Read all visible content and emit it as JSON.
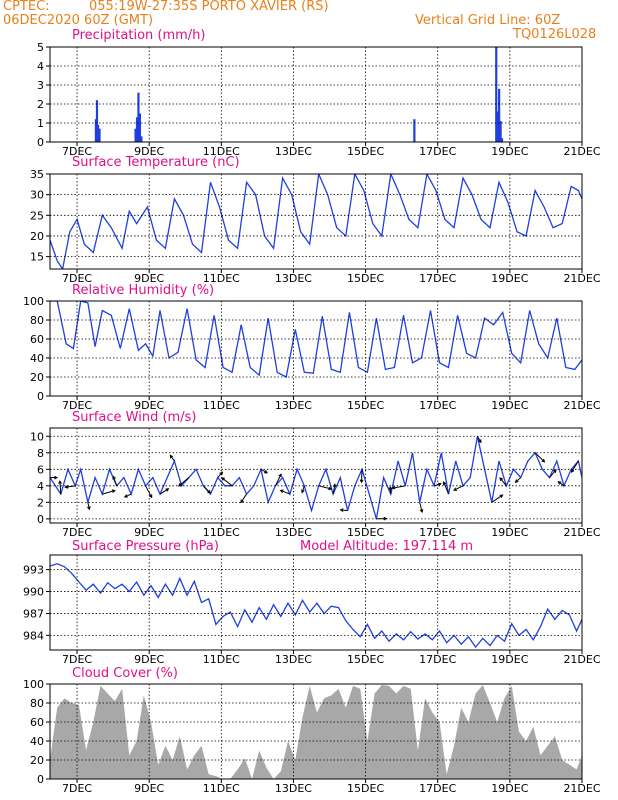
{
  "header": {
    "source": "CPTEC:",
    "location": "055:19W-27:35S   PORTO XAVIER (RS)",
    "date": "06DEC2020 60Z (GMT)",
    "grid_note": "Vertical Grid Line: 60Z",
    "model": "TQ0126L028"
  },
  "panels": {
    "precip": {
      "title": "Precipitation  (mm/h)"
    },
    "temp": {
      "title": "Surface Temperature (nC)"
    },
    "rh": {
      "title": "Relative Humidity (%)"
    },
    "wind": {
      "title": "Surface Wind (m/s)"
    },
    "pres": {
      "title": "Surface Pressure (hPa)",
      "altitude": "Model Altitude: 197.114 m"
    },
    "cloud": {
      "title": "Cloud Cover (%)"
    }
  },
  "colors": {
    "line": "#1f3fe0",
    "cloud": "#a8a8a8",
    "title": "#e0108a",
    "header": "#e8801a"
  },
  "chart_data": [
    {
      "type": "bar",
      "name": "precipitation",
      "xlabel": "",
      "ylabel": "",
      "x_tick_labels": [
        "7DEC",
        "9DEC",
        "11DEC",
        "13DEC",
        "15DEC",
        "17DEC",
        "19DEC",
        "21DEC"
      ],
      "ylim": [
        0,
        5
      ],
      "y_ticks": [
        0,
        1,
        2,
        3,
        4,
        5
      ],
      "x_range_days": [
        6.25,
        21.0
      ],
      "points": [
        {
          "day": 7.52,
          "value": 1.2
        },
        {
          "day": 7.55,
          "value": 2.2
        },
        {
          "day": 7.58,
          "value": 0.9
        },
        {
          "day": 7.62,
          "value": 0.7
        },
        {
          "day": 8.62,
          "value": 0.7
        },
        {
          "day": 8.66,
          "value": 1.3
        },
        {
          "day": 8.7,
          "value": 2.6
        },
        {
          "day": 8.74,
          "value": 1.5
        },
        {
          "day": 8.78,
          "value": 0.3
        },
        {
          "day": 16.35,
          "value": 1.2
        },
        {
          "day": 18.62,
          "value": 5.0
        },
        {
          "day": 18.66,
          "value": 1.6
        },
        {
          "day": 18.7,
          "value": 2.8
        },
        {
          "day": 18.74,
          "value": 1.1
        },
        {
          "day": 18.78,
          "value": 0.2
        }
      ]
    },
    {
      "type": "line",
      "name": "surface_temperature",
      "xlabel": "",
      "ylabel": "",
      "x_tick_labels": [
        "7DEC",
        "9DEC",
        "11DEC",
        "13DEC",
        "15DEC",
        "17DEC",
        "19DEC",
        "21DEC"
      ],
      "ylim": [
        12,
        35
      ],
      "y_ticks": [
        15,
        20,
        25,
        30,
        35
      ],
      "x_range_days": [
        6.25,
        21.0
      ],
      "x": [
        6.25,
        6.45,
        6.6,
        6.8,
        7.0,
        7.2,
        7.45,
        7.7,
        7.95,
        8.25,
        8.45,
        8.65,
        8.95,
        9.2,
        9.45,
        9.7,
        9.95,
        10.2,
        10.45,
        10.7,
        10.95,
        11.2,
        11.45,
        11.7,
        11.95,
        12.2,
        12.45,
        12.7,
        12.95,
        13.2,
        13.45,
        13.7,
        13.95,
        14.2,
        14.45,
        14.7,
        14.95,
        15.2,
        15.45,
        15.7,
        15.95,
        16.2,
        16.45,
        16.7,
        16.95,
        17.2,
        17.45,
        17.7,
        17.95,
        18.2,
        18.45,
        18.7,
        18.95,
        19.2,
        19.45,
        19.7,
        19.95,
        20.2,
        20.45,
        20.7,
        20.9,
        21.0
      ],
      "y": [
        19,
        14,
        12,
        21,
        24,
        18,
        16,
        25,
        22,
        17,
        26,
        23,
        27,
        19,
        17,
        29,
        25,
        18,
        16,
        33,
        27,
        19,
        17,
        33,
        30,
        20,
        17,
        34,
        30,
        21,
        18,
        35,
        30,
        22,
        20,
        35,
        31,
        23,
        20,
        35,
        30,
        24,
        22,
        35,
        31,
        24,
        22,
        34,
        30,
        24,
        22,
        33,
        28,
        21,
        20,
        31,
        27,
        22,
        23,
        32,
        31,
        29
      ]
    },
    {
      "type": "line",
      "name": "relative_humidity",
      "xlabel": "",
      "ylabel": "",
      "x_tick_labels": [
        "7DEC",
        "9DEC",
        "11DEC",
        "13DEC",
        "15DEC",
        "17DEC",
        "19DEC",
        "21DEC"
      ],
      "ylim": [
        0,
        100
      ],
      "y_ticks": [
        0,
        20,
        40,
        60,
        80,
        100
      ],
      "x_range_days": [
        6.25,
        21.0
      ],
      "x": [
        6.25,
        6.45,
        6.7,
        6.9,
        7.1,
        7.3,
        7.5,
        7.7,
        7.95,
        8.2,
        8.45,
        8.7,
        8.9,
        9.1,
        9.3,
        9.55,
        9.8,
        10.05,
        10.3,
        10.55,
        10.8,
        11.05,
        11.3,
        11.55,
        11.8,
        12.05,
        12.3,
        12.55,
        12.8,
        13.05,
        13.3,
        13.55,
        13.8,
        14.05,
        14.3,
        14.55,
        14.8,
        15.05,
        15.3,
        15.55,
        15.8,
        16.05,
        16.3,
        16.55,
        16.8,
        17.05,
        17.3,
        17.55,
        17.8,
        18.05,
        18.3,
        18.55,
        18.8,
        19.05,
        19.3,
        19.55,
        19.8,
        20.05,
        20.3,
        20.55,
        20.8,
        21.0
      ],
      "y": [
        100,
        100,
        55,
        50,
        100,
        98,
        52,
        90,
        85,
        50,
        92,
        48,
        55,
        42,
        90,
        40,
        46,
        92,
        38,
        30,
        85,
        30,
        25,
        75,
        30,
        22,
        82,
        25,
        20,
        70,
        25,
        24,
        84,
        28,
        25,
        88,
        30,
        25,
        82,
        28,
        30,
        85,
        35,
        40,
        90,
        35,
        30,
        85,
        45,
        40,
        82,
        75,
        88,
        45,
        35,
        90,
        55,
        40,
        82,
        30,
        28,
        38
      ]
    },
    {
      "type": "line",
      "name": "surface_wind",
      "xlabel": "",
      "ylabel": "",
      "x_tick_labels": [
        "7DEC",
        "9DEC",
        "11DEC",
        "13DEC",
        "15DEC",
        "17DEC",
        "19DEC",
        "21DEC"
      ],
      "ylim": [
        -0.5,
        11
      ],
      "y_ticks": [
        0,
        2,
        4,
        6,
        8,
        10
      ],
      "x_range_days": [
        6.25,
        21.0
      ],
      "x": [
        6.25,
        6.4,
        6.55,
        6.75,
        6.95,
        7.1,
        7.3,
        7.5,
        7.7,
        7.9,
        8.1,
        8.3,
        8.5,
        8.7,
        8.9,
        9.1,
        9.3,
        9.5,
        9.7,
        9.9,
        10.1,
        10.3,
        10.5,
        10.7,
        10.9,
        11.1,
        11.3,
        11.5,
        11.7,
        11.9,
        12.1,
        12.3,
        12.5,
        12.7,
        12.9,
        13.1,
        13.3,
        13.5,
        13.7,
        13.9,
        14.1,
        14.3,
        14.5,
        14.7,
        14.9,
        15.1,
        15.3,
        15.5,
        15.7,
        15.9,
        16.1,
        16.3,
        16.5,
        16.7,
        16.9,
        17.1,
        17.3,
        17.5,
        17.7,
        17.9,
        18.1,
        18.3,
        18.5,
        18.7,
        18.9,
        19.1,
        19.3,
        19.5,
        19.7,
        19.9,
        20.1,
        20.3,
        20.5,
        20.7,
        20.9,
        21.0
      ],
      "y": [
        5,
        4,
        3,
        6,
        4,
        6,
        2,
        5,
        3,
        6,
        4,
        5,
        3,
        6,
        4,
        5,
        3,
        5,
        7,
        4,
        5,
        6,
        4,
        3,
        5,
        4,
        4,
        5,
        3,
        4,
        6,
        2,
        4,
        5,
        3,
        6,
        4,
        1,
        4,
        6,
        3,
        5,
        1,
        4,
        6,
        3,
        0,
        5,
        3,
        7,
        4,
        8,
        2,
        6,
        4,
        8,
        3,
        7,
        4,
        5,
        10,
        6,
        2,
        7,
        4,
        6,
        5,
        7,
        8,
        6,
        5,
        7,
        4,
        6,
        7,
        5
      ]
    },
    {
      "type": "line",
      "name": "surface_pressure",
      "xlabel": "",
      "ylabel": "",
      "x_tick_labels": [
        "7DEC",
        "9DEC",
        "11DEC",
        "13DEC",
        "15DEC",
        "17DEC",
        "19DEC",
        "21DEC"
      ],
      "ylim": [
        982,
        995
      ],
      "y_ticks": [
        984,
        987,
        990,
        993
      ],
      "x_range_days": [
        6.25,
        21.0
      ],
      "x": [
        6.25,
        6.45,
        6.65,
        6.85,
        7.05,
        7.25,
        7.45,
        7.65,
        7.85,
        8.05,
        8.25,
        8.45,
        8.65,
        8.85,
        9.05,
        9.25,
        9.45,
        9.65,
        9.85,
        10.05,
        10.25,
        10.45,
        10.65,
        10.85,
        11.05,
        11.25,
        11.45,
        11.65,
        11.85,
        12.05,
        12.25,
        12.45,
        12.65,
        12.85,
        13.05,
        13.25,
        13.45,
        13.65,
        13.85,
        14.05,
        14.25,
        14.45,
        14.65,
        14.85,
        15.05,
        15.25,
        15.45,
        15.65,
        15.85,
        16.05,
        16.25,
        16.45,
        16.65,
        16.85,
        17.05,
        17.25,
        17.45,
        17.65,
        17.85,
        18.05,
        18.25,
        18.45,
        18.65,
        18.85,
        19.05,
        19.25,
        19.45,
        19.65,
        19.85,
        20.05,
        20.25,
        20.45,
        20.65,
        20.85,
        21.0
      ],
      "y": [
        993.5,
        993.8,
        993.4,
        992.5,
        991.3,
        990.2,
        991.0,
        989.8,
        991.2,
        990.4,
        991.0,
        990.0,
        991.3,
        989.5,
        990.8,
        989.2,
        991.0,
        989.5,
        991.8,
        989.5,
        991.4,
        988.5,
        989.0,
        985.5,
        986.6,
        987.2,
        985.2,
        987.5,
        985.8,
        987.8,
        986.2,
        988.2,
        986.6,
        988.4,
        986.8,
        988.8,
        987.2,
        988.4,
        987.0,
        988.0,
        987.8,
        986.0,
        984.8,
        983.8,
        985.5,
        983.6,
        984.6,
        983.2,
        984.2,
        983.4,
        984.5,
        983.5,
        984.2,
        983.4,
        984.6,
        983.0,
        984.0,
        982.8,
        983.8,
        982.4,
        983.6,
        982.6,
        984.0,
        983.2,
        985.6,
        984.0,
        984.8,
        983.4,
        985.2,
        987.6,
        986.2,
        987.4,
        986.8,
        984.6,
        986.2
      ]
    },
    {
      "type": "area",
      "name": "cloud_cover",
      "xlabel": "",
      "ylabel": "",
      "x_tick_labels": [
        "7DEC",
        "9DEC",
        "11DEC",
        "13DEC",
        "15DEC",
        "17DEC",
        "19DEC",
        "21DEC"
      ],
      "ylim": [
        0,
        100
      ],
      "y_ticks": [
        0,
        20,
        40,
        60,
        80,
        100
      ],
      "x_range_days": [
        6.25,
        21.0
      ],
      "x": [
        6.25,
        6.45,
        6.65,
        6.85,
        7.05,
        7.25,
        7.45,
        7.65,
        7.85,
        8.05,
        8.25,
        8.45,
        8.65,
        8.85,
        9.05,
        9.25,
        9.45,
        9.65,
        9.85,
        10.05,
        10.25,
        10.45,
        10.65,
        10.85,
        11.05,
        11.25,
        11.45,
        11.65,
        11.85,
        12.05,
        12.25,
        12.45,
        12.65,
        12.85,
        13.05,
        13.25,
        13.45,
        13.65,
        13.85,
        14.05,
        14.25,
        14.45,
        14.65,
        14.85,
        15.05,
        15.25,
        15.45,
        15.65,
        15.85,
        16.05,
        16.25,
        16.45,
        16.65,
        16.85,
        17.05,
        17.25,
        17.45,
        17.65,
        17.85,
        18.05,
        18.25,
        18.45,
        18.65,
        18.85,
        19.05,
        19.25,
        19.45,
        19.65,
        19.85,
        20.05,
        20.25,
        20.45,
        20.65,
        20.85,
        21.0
      ],
      "y": [
        20,
        75,
        85,
        80,
        78,
        30,
        60,
        98,
        90,
        82,
        95,
        25,
        40,
        88,
        60,
        15,
        35,
        20,
        45,
        10,
        25,
        35,
        5,
        3,
        0,
        0,
        10,
        22,
        0,
        30,
        12,
        0,
        8,
        40,
        20,
        65,
        98,
        70,
        85,
        88,
        95,
        75,
        98,
        95,
        40,
        90,
        99,
        98,
        90,
        98,
        95,
        30,
        85,
        70,
        60,
        5,
        35,
        75,
        60,
        90,
        99,
        80,
        60,
        85,
        98,
        50,
        40,
        55,
        25,
        35,
        45,
        20,
        15,
        10,
        25
      ]
    }
  ]
}
